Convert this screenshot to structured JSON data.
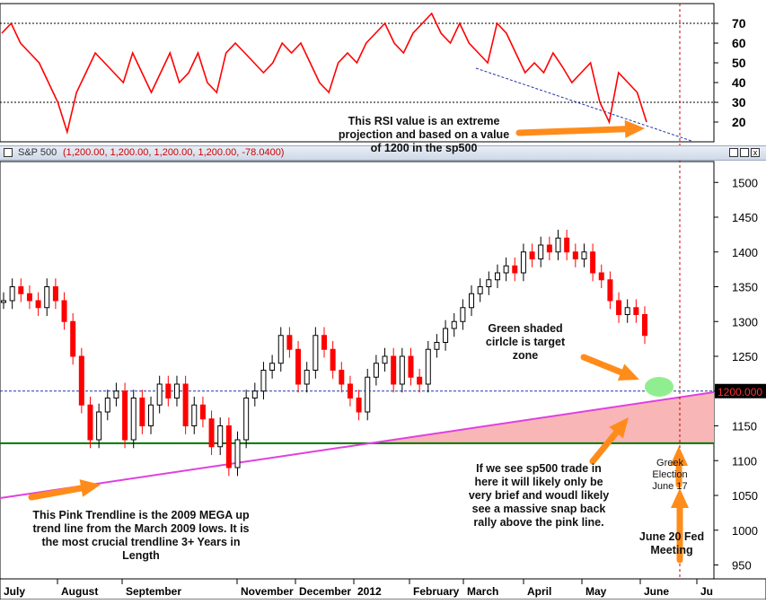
{
  "window": {
    "title": "S&P 500",
    "values": "(1,200.00, 1,200.00, 1,200.00, 1,200.00, -78.0400)"
  },
  "price_label": "1200.000",
  "annotations": {
    "rsi_note": "This RSI value is an extreme\nprojection and based on a value\nof 1200 in the sp500",
    "target_note": "Green shaded\ncirlcle is target\nzone",
    "trade_note": "If we see sp500 trade in\nhere it will likely only be\nvery brief and woudl likely\nsee a massive snap back\nrally above the pink line.",
    "trendline_note": "This Pink Trendline is the 2009 MEGA up\ntrend line from the March 2009 lows.  It is\nthe most crucial trendline 3+ Years in\nLength",
    "greek_note": "Greek\nElection\nJune 17",
    "fed_note": "June 20 Fed\nMeeting"
  },
  "colors": {
    "rsi_line": "#ff0000",
    "up_candle": "#000000",
    "down_candle": "#ff0000",
    "trendline": "#e040e0",
    "support": "#007700",
    "shade": "#f9b6b6",
    "target": "#90ee90",
    "arrow": "#ff8c1a"
  },
  "chart_data": [
    {
      "type": "line",
      "title": "",
      "series": [
        {
          "name": "",
          "values": [
            65,
            70,
            60,
            55,
            50,
            40,
            30,
            15,
            35,
            45,
            55,
            50,
            45,
            40,
            55,
            45,
            35,
            45,
            55,
            40,
            45,
            55,
            40,
            35,
            55,
            60,
            55,
            50,
            45,
            50,
            60,
            55,
            60,
            50,
            40,
            35,
            50,
            55,
            50,
            60,
            65,
            70,
            60,
            55,
            65,
            70,
            75,
            65,
            60,
            70,
            60,
            55,
            50,
            70,
            65,
            55,
            45,
            50,
            45,
            55,
            48,
            40,
            45,
            50,
            30,
            20,
            45,
            40,
            35,
            20
          ]
        }
      ],
      "ylim": [
        10,
        80
      ],
      "y_ticks": [
        "20",
        "30",
        "40",
        "50",
        "60",
        "70"
      ],
      "reference_lines": [
        30,
        70
      ],
      "grid": false
    },
    {
      "type": "line",
      "title": "S&P 500",
      "series": [
        {
          "name": "",
          "values": [
            1330,
            1350,
            1340,
            1330,
            1320,
            1350,
            1330,
            1300,
            1250,
            1180,
            1130,
            1170,
            1190,
            1200,
            1130,
            1190,
            1150,
            1180,
            1210,
            1190,
            1210,
            1150,
            1180,
            1160,
            1120,
            1150,
            1090,
            1130,
            1190,
            1200,
            1230,
            1240,
            1280,
            1260,
            1210,
            1230,
            1280,
            1260,
            1230,
            1210,
            1190,
            1170,
            1220,
            1240,
            1250,
            1210,
            1250,
            1220,
            1210,
            1260,
            1270,
            1290,
            1300,
            1320,
            1340,
            1350,
            1360,
            1370,
            1380,
            1370,
            1400,
            1390,
            1410,
            1400,
            1420,
            1400,
            1390,
            1400,
            1370,
            1360,
            1330,
            1310,
            1320,
            1310,
            1280
          ]
        }
      ],
      "ylim": [
        930,
        1530
      ],
      "y_ticks": [
        "950",
        "1000",
        "1050",
        "1100",
        "1150",
        "1200",
        "1250",
        "1300",
        "1350",
        "1400",
        "1450",
        "1500"
      ],
      "x_ticks": [
        "July",
        "August",
        "September",
        "November",
        "December",
        "2012",
        "February",
        "March",
        "April",
        "May",
        "June",
        "Ju"
      ],
      "reference_lines": [
        1200,
        1125
      ],
      "grid": false
    }
  ]
}
